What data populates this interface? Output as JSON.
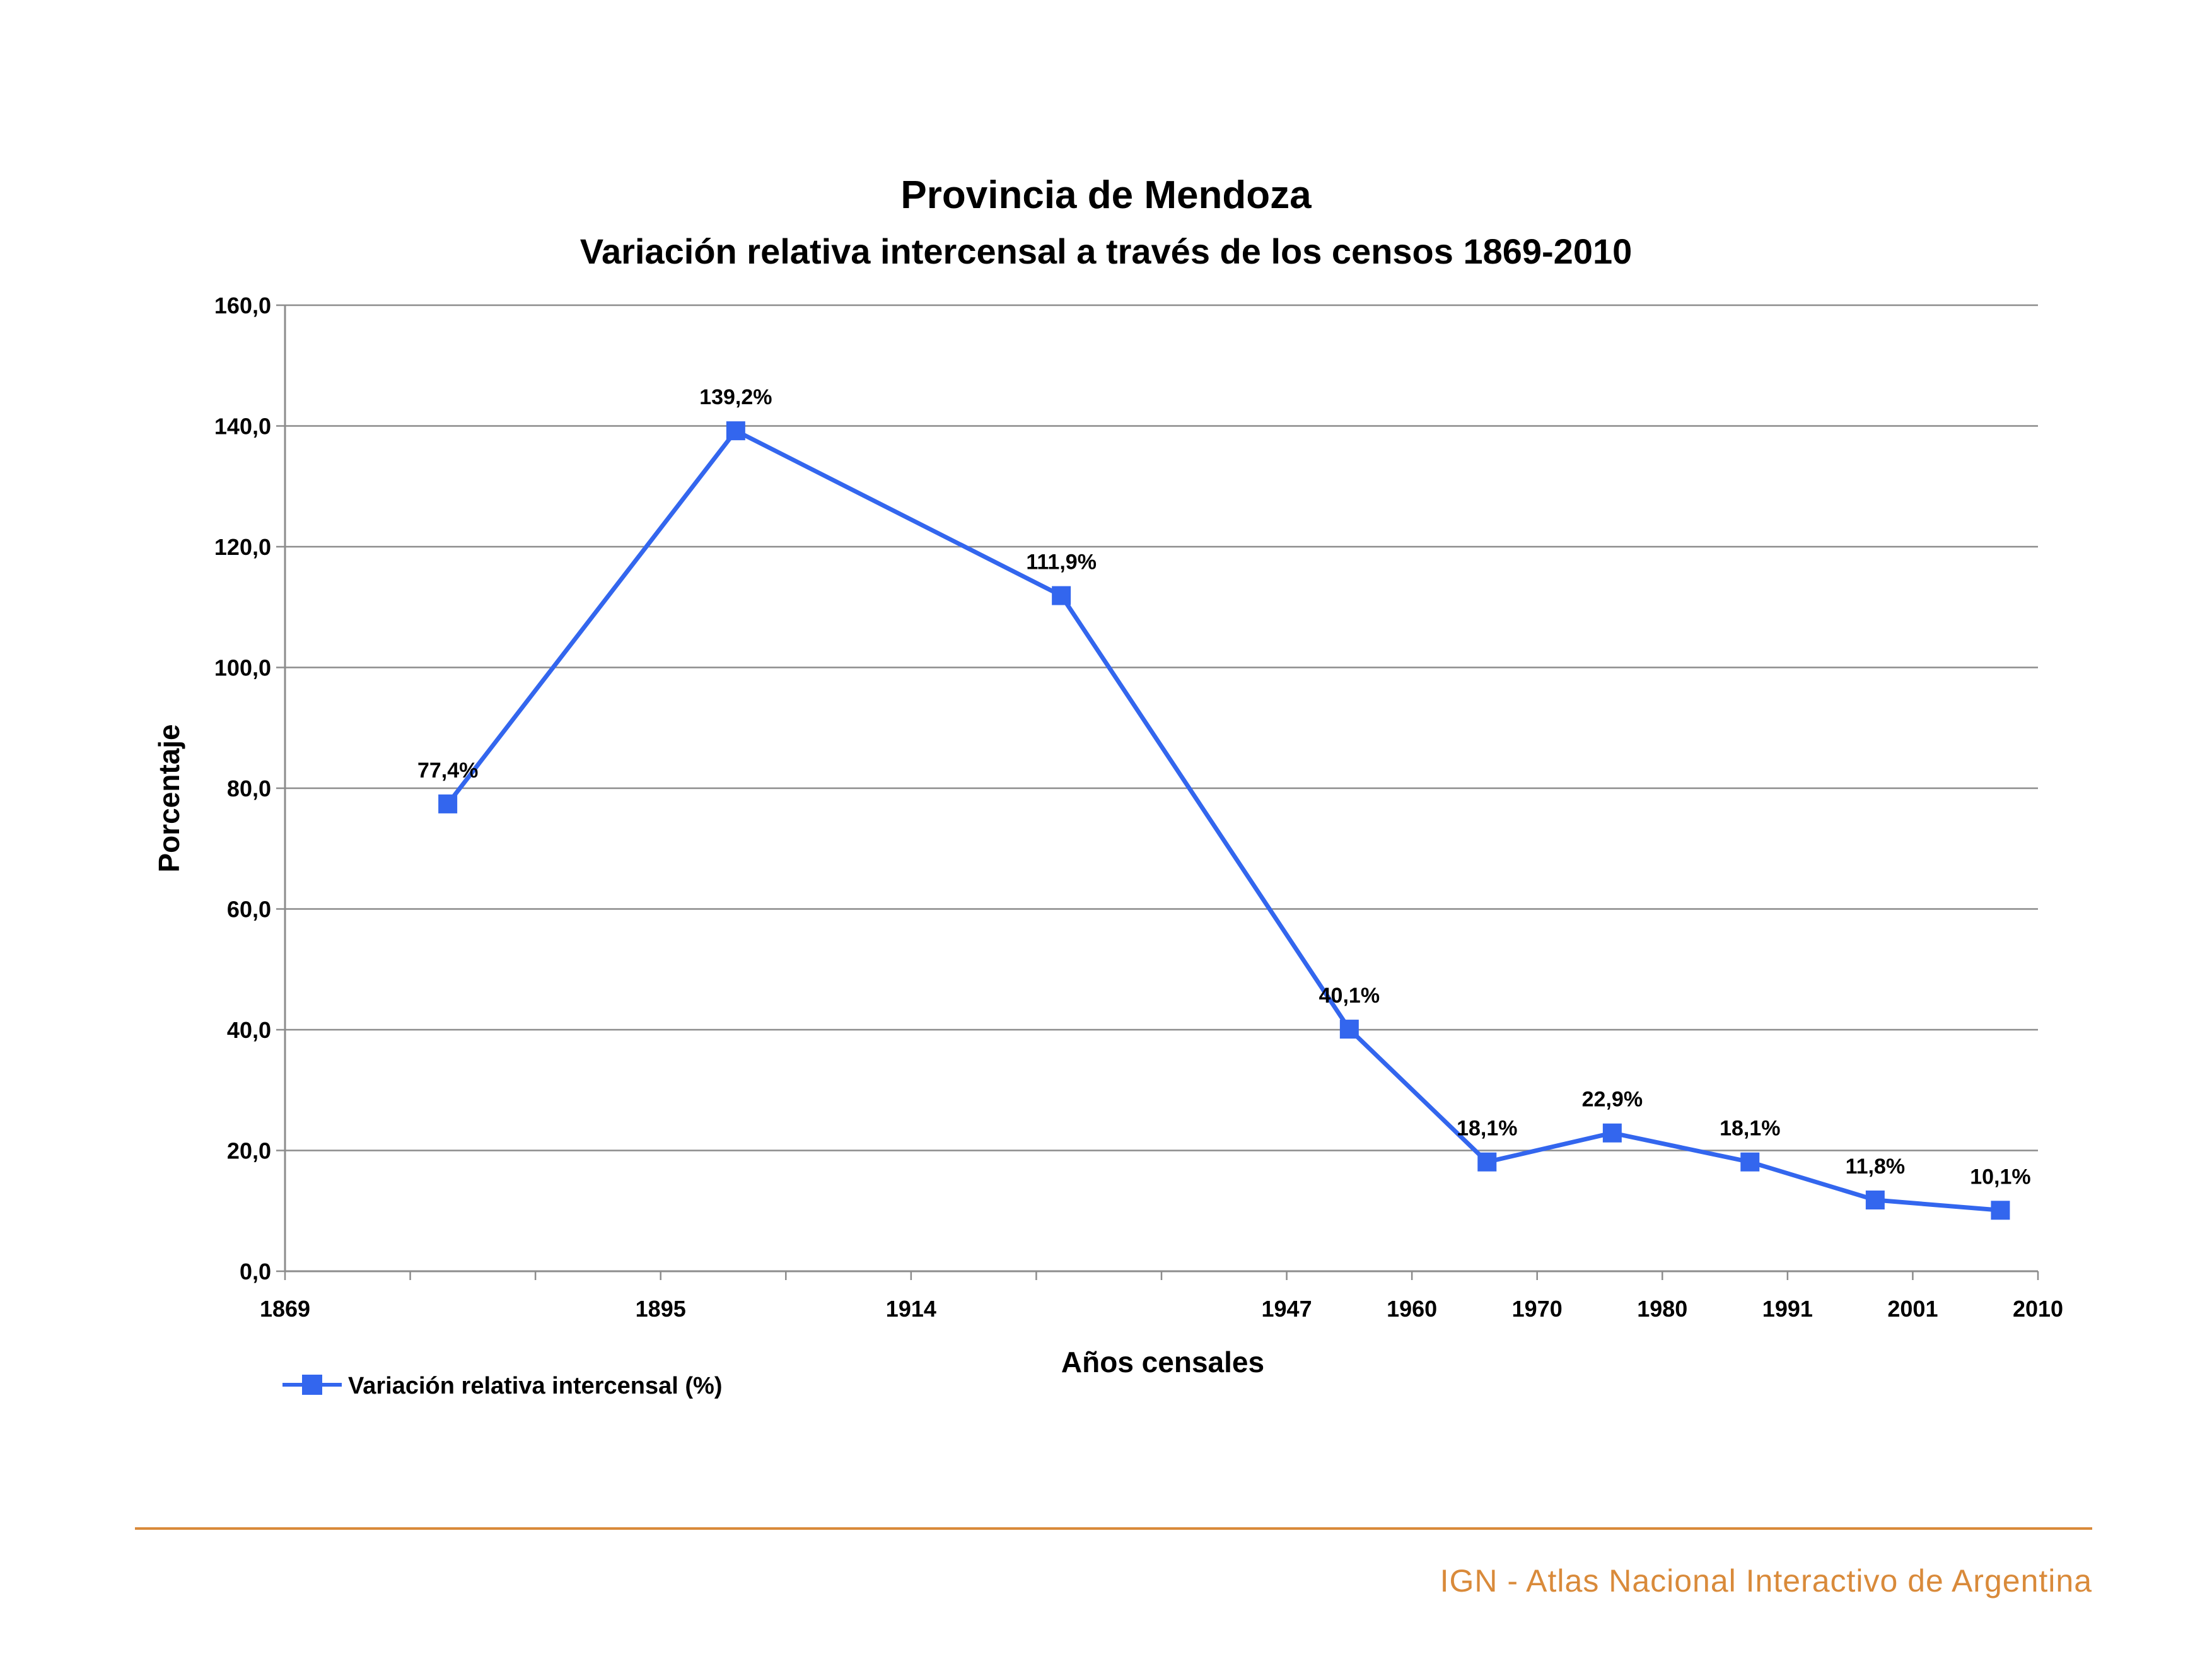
{
  "chart_data": {
    "type": "line",
    "title": "Provincia de Mendoza",
    "subtitle": "Variación relativa intercensal a través de los censos 1869-2010",
    "xlabel": "Años censales",
    "ylabel": "Porcentaje",
    "ylim": [
      0,
      160
    ],
    "y_ticks": [
      "0,0",
      "20,0",
      "40,0",
      "60,0",
      "80,0",
      "100,0",
      "120,0",
      "140,0",
      "160,0"
    ],
    "x_tick_labels": [
      {
        "label": "1869",
        "slot": 0
      },
      {
        "label": "1895",
        "slot": 3
      },
      {
        "label": "1914",
        "slot": 5
      },
      {
        "label": "1947",
        "slot": 8
      },
      {
        "label": "1960",
        "slot": 9
      },
      {
        "label": "1970",
        "slot": 10
      },
      {
        "label": "1980",
        "slot": 11
      },
      {
        "label": "1991",
        "slot": 12
      },
      {
        "label": "2001",
        "slot": 13
      },
      {
        "label": "2010",
        "slot": 14
      }
    ],
    "x_slots": 14,
    "grid": true,
    "legend_position": "bottom-left",
    "series": [
      {
        "name": "Variación relativa intercensal (%)",
        "color": "#3366ee",
        "marker": "square",
        "points": [
          {
            "slot": 1.3,
            "value": 77.4,
            "label": "77,4%"
          },
          {
            "slot": 3.6,
            "value": 139.2,
            "label": "139,2%"
          },
          {
            "slot": 6.2,
            "value": 111.9,
            "label": "111,9%"
          },
          {
            "slot": 8.5,
            "value": 40.1,
            "label": "40,1%"
          },
          {
            "slot": 9.6,
            "value": 18.1,
            "label": "18,1%"
          },
          {
            "slot": 10.6,
            "value": 22.9,
            "label": "22,9%"
          },
          {
            "slot": 11.7,
            "value": 18.1,
            "label": "18,1%"
          },
          {
            "slot": 12.7,
            "value": 11.8,
            "label": "11,8%"
          },
          {
            "slot": 13.7,
            "value": 10.1,
            "label": "10,1%"
          }
        ]
      }
    ]
  },
  "footer": {
    "text": "IGN - Atlas Nacional Interactivo de Argentina",
    "color": "#d98a3a"
  }
}
